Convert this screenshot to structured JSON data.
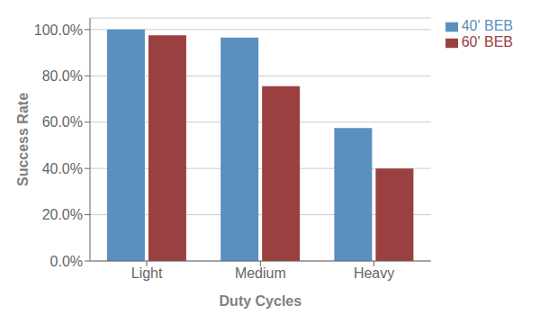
{
  "chart_data": {
    "type": "bar",
    "categories": [
      "Light",
      "Medium",
      "Heavy"
    ],
    "series": [
      {
        "name": "40' BEB",
        "color": "#5b8fbf",
        "values": [
          1.0,
          0.965,
          0.575
        ]
      },
      {
        "name": "60' BEB",
        "color": "#9b4040",
        "values": [
          0.975,
          0.755,
          0.4
        ]
      }
    ],
    "xlabel": "Duty Cycles",
    "ylabel": "Success Rate",
    "ylim": [
      0,
      1.05
    ],
    "yticks": [
      {
        "value": 0.0,
        "label": "0.0%"
      },
      {
        "value": 0.2,
        "label": "20.0%"
      },
      {
        "value": 0.4,
        "label": "40.0%"
      },
      {
        "value": 0.6,
        "label": "60.0%"
      },
      {
        "value": 0.8,
        "label": "80.0%"
      },
      {
        "value": 1.0,
        "label": "100.0%"
      }
    ],
    "grid": true,
    "legend": "upper right"
  }
}
